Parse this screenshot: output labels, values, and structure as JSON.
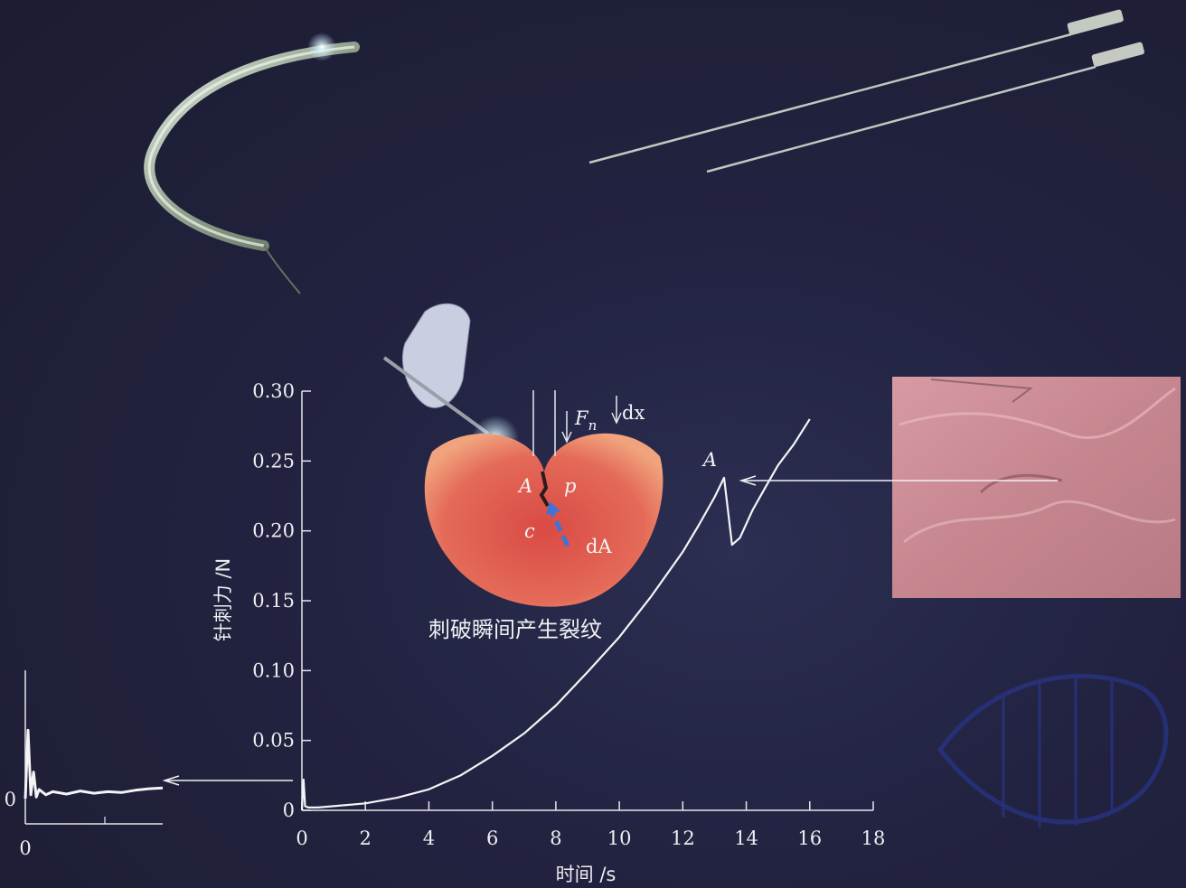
{
  "chart_data": [
    {
      "type": "line",
      "title": "",
      "xlabel": "时间 /s",
      "ylabel": "针刺力 /N",
      "xlim": [
        0,
        18
      ],
      "ylim": [
        0,
        0.3
      ],
      "x_ticks": [
        "0",
        "2",
        "4",
        "6",
        "8",
        "10",
        "12",
        "14",
        "16",
        "18"
      ],
      "y_ticks": [
        "0",
        "0.05",
        "0.10",
        "0.15",
        "0.20",
        "0.25",
        "0.30"
      ],
      "series": [
        {
          "x": [
            0,
            0.05,
            0.1,
            0.2,
            0.5,
            1,
            2,
            3,
            4,
            5,
            6,
            7,
            8,
            9,
            10,
            11,
            12,
            12.5,
            13,
            13.3,
            13.55,
            13.8,
            14.2,
            14.6,
            15,
            15.5,
            16
          ],
          "y": [
            0,
            0.022,
            0.003,
            0.002,
            0.002,
            0.003,
            0.005,
            0.009,
            0.015,
            0.025,
            0.039,
            0.055,
            0.075,
            0.099,
            0.124,
            0.153,
            0.185,
            0.204,
            0.224,
            0.238,
            0.19,
            0.195,
            0.215,
            0.231,
            0.247,
            0.262,
            0.28
          ]
        }
      ],
      "annotations": [
        {
          "text": "A",
          "x": 13.2,
          "y": 0.245
        }
      ]
    },
    {
      "type": "line",
      "note_label": "inset",
      "x_ticks": [
        "0"
      ],
      "y_ticks": [
        "0"
      ],
      "series": [
        {
          "x": [
            0,
            0.02,
            0.04,
            0.06,
            0.08,
            0.1,
            0.15,
            0.2,
            0.3,
            0.4,
            0.5,
            0.6,
            0.7,
            0.8,
            0.9,
            1.0
          ],
          "y": [
            0,
            0.9,
            0.05,
            0.35,
            0.02,
            0.12,
            0.05,
            0.09,
            0.06,
            0.1,
            0.07,
            0.09,
            0.08,
            0.11,
            0.13,
            0.14
          ]
        }
      ]
    }
  ],
  "diagram": {
    "labels": {
      "force": "F",
      "force_sub": "n",
      "displacement": "dx",
      "crack_point": "A",
      "pressure": "p",
      "crack_length": "c",
      "crack_area": "dA"
    },
    "caption": "刺破瞬间产生裂纹"
  },
  "colors": {
    "background": "#1f2037",
    "curve": "#f4f4f6",
    "tissue": "#e0584e",
    "arrow_blue": "#3f73d8",
    "photo": "#c98a92"
  }
}
